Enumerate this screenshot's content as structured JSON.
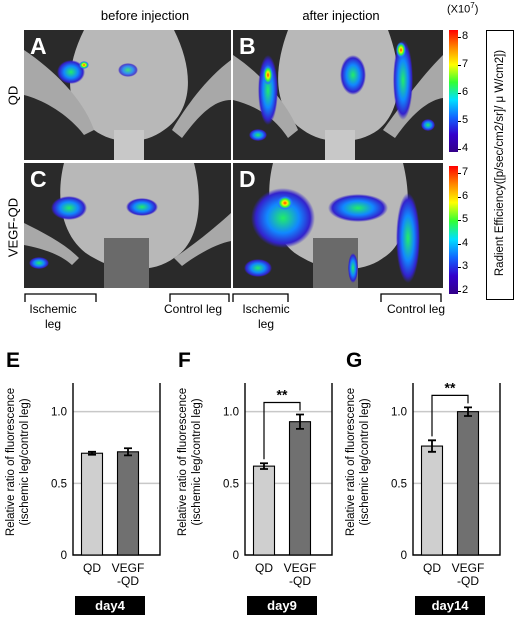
{
  "column_headers": {
    "before": "before injection",
    "after": "after injection"
  },
  "row_labels": {
    "top": "QD",
    "bottom": "VEGF-QD"
  },
  "panels": [
    {
      "letter": "A"
    },
    {
      "letter": "B"
    },
    {
      "letter": "C"
    },
    {
      "letter": "D"
    }
  ],
  "scale_top": {
    "exponent": "(X10",
    "exp_power": "7",
    "exp_close": ")",
    "ticks": [
      "8",
      "7",
      "6",
      "5",
      "4"
    ]
  },
  "scale_bottom": {
    "ticks": [
      "7",
      "6",
      "5",
      "4",
      "3",
      "2"
    ]
  },
  "radiance_label": "Radient Efficiency([p/sec/cm2/sr]/ μ W/cm2])",
  "leg_labels": {
    "ischemic_left": "Ischemic leg",
    "control_left": "Control leg",
    "ischemic_right": "Ischemic leg",
    "control_right": "Control leg"
  },
  "y_axis_label_line1": "Relative ratio of fluorescence",
  "y_axis_label_line2": "(ischemic leg/control leg)",
  "significance": "**",
  "chart_data": [
    {
      "letter": "E",
      "type": "bar",
      "day": "day4",
      "categories": [
        "QD",
        "VEGF\n-QD"
      ],
      "values": [
        0.71,
        0.72
      ],
      "errors": [
        0.01,
        0.025
      ],
      "ylim": [
        0,
        1.2
      ],
      "yticks": [
        "0",
        "0.5",
        "1.0"
      ],
      "significant": false,
      "colors": [
        "#cfcfcf",
        "#707070"
      ]
    },
    {
      "letter": "F",
      "type": "bar",
      "day": "day9",
      "categories": [
        "QD",
        "VEGF\n-QD"
      ],
      "values": [
        0.62,
        0.93
      ],
      "errors": [
        0.02,
        0.05
      ],
      "ylim": [
        0,
        1.2
      ],
      "yticks": [
        "0",
        "0.5",
        "1.0"
      ],
      "significant": true,
      "colors": [
        "#cfcfcf",
        "#707070"
      ]
    },
    {
      "letter": "G",
      "type": "bar",
      "day": "day14",
      "categories": [
        "QD",
        "VEGF\n-QD"
      ],
      "values": [
        0.76,
        1.0
      ],
      "errors": [
        0.04,
        0.03
      ],
      "ylim": [
        0,
        1.2
      ],
      "yticks": [
        "0",
        "0.5",
        "1.0"
      ],
      "significant": true,
      "colors": [
        "#cfcfcf",
        "#707070"
      ]
    }
  ]
}
